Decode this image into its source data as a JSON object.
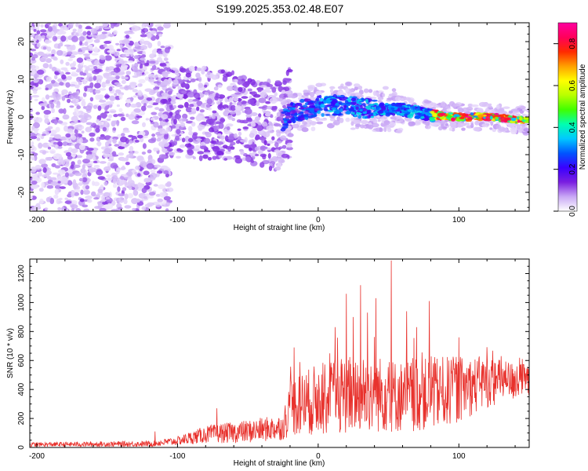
{
  "title": "S199.2025.353.02.48.E07",
  "colors": {
    "snr_line": "#e8322d",
    "frame": "#000000",
    "background": "#ffffff"
  },
  "chart_data": [
    {
      "type": "heatmap",
      "name": "spectrogram",
      "xlabel": "Height of straight line (km)",
      "ylabel": "Frequency (Hz)",
      "xlim": [
        -205,
        150
      ],
      "ylim": [
        -25,
        25
      ],
      "xticks": [
        -200,
        -100,
        0,
        100
      ],
      "xtick_labels": [
        "-200",
        "-100",
        "0",
        "100"
      ],
      "yticks": [
        -20,
        -10,
        0,
        10,
        20
      ],
      "ytick_labels": [
        "-20",
        "-10",
        "0",
        "10",
        "20"
      ],
      "colorbar": {
        "label": "Normalized spectral amplitude",
        "range": [
          0.0,
          0.9
        ],
        "ticks": [
          0.0,
          0.2,
          0.4,
          0.6,
          0.8
        ],
        "tick_labels": [
          "0.0",
          "0.2",
          "0.4",
          "0.6",
          "0.8"
        ],
        "colormap": [
          "#ffffff",
          "#c9a8f5",
          "#7a1fe0",
          "#3a00ff",
          "#0055ff",
          "#00c8ff",
          "#00ffb0",
          "#40ff00",
          "#b8ff00",
          "#ffff00",
          "#ffa000",
          "#ff2a00",
          "#ff005a",
          "#ff00a0"
        ]
      },
      "ridge": [
        {
          "x": -120,
          "f": 1.5
        },
        {
          "x": -80,
          "f": 1.0
        },
        {
          "x": -40,
          "f": -1.0
        },
        {
          "x": -30,
          "f": -3.0
        },
        {
          "x": -20,
          "f": 1.0
        },
        {
          "x": 0,
          "f": 3.0
        },
        {
          "x": 20,
          "f": 3.0
        },
        {
          "x": 40,
          "f": 2.0
        },
        {
          "x": 60,
          "f": 2.0
        },
        {
          "x": 80,
          "f": 0.5
        },
        {
          "x": 100,
          "f": 0.0
        },
        {
          "x": 120,
          "f": 0.0
        },
        {
          "x": 150,
          "f": -1.0
        }
      ]
    },
    {
      "type": "line",
      "name": "snr",
      "xlabel": "Height of straight line (km)",
      "ylabel": "SNR (10 * v/v)",
      "xlim": [
        -205,
        150
      ],
      "ylim": [
        0,
        1300
      ],
      "xticks": [
        -200,
        -100,
        0,
        100
      ],
      "xtick_labels": [
        "-200",
        "-100",
        "0",
        "100"
      ],
      "yticks": [
        0,
        200,
        400,
        600,
        800,
        1000,
        1200
      ],
      "ytick_labels": [
        "0",
        "200",
        "400",
        "600",
        "800",
        "1000",
        "1200"
      ],
      "envelope": [
        {
          "x": -205,
          "mean": 20,
          "spread": 15
        },
        {
          "x": -120,
          "mean": 25,
          "spread": 20
        },
        {
          "x": -100,
          "mean": 45,
          "spread": 30
        },
        {
          "x": -80,
          "mean": 90,
          "spread": 60
        },
        {
          "x": -50,
          "mean": 110,
          "spread": 80
        },
        {
          "x": -25,
          "mean": 140,
          "spread": 90
        },
        {
          "x": -20,
          "mean": 280,
          "spread": 200
        },
        {
          "x": 0,
          "mean": 330,
          "spread": 250
        },
        {
          "x": 30,
          "mean": 380,
          "spread": 280
        },
        {
          "x": 60,
          "mean": 350,
          "spread": 250
        },
        {
          "x": 90,
          "mean": 380,
          "spread": 250
        },
        {
          "x": 120,
          "mean": 450,
          "spread": 180
        },
        {
          "x": 150,
          "mean": 460,
          "spread": 110
        }
      ],
      "peaks": [
        {
          "x": 52,
          "y": 1290
        },
        {
          "x": 30,
          "y": 1120
        },
        {
          "x": 20,
          "y": 1060
        },
        {
          "x": 41,
          "y": 1030
        },
        {
          "x": 79,
          "y": 1010
        },
        {
          "x": 63,
          "y": 940
        },
        {
          "x": 35,
          "y": 930
        },
        {
          "x": 25,
          "y": 900
        },
        {
          "x": 12,
          "y": 830
        },
        {
          "x": 70,
          "y": 830
        },
        {
          "x": 100,
          "y": 760
        },
        {
          "x": -17,
          "y": 690
        },
        {
          "x": 130,
          "y": 630
        },
        {
          "x": 145,
          "y": 610
        },
        {
          "x": -72,
          "y": 270
        },
        {
          "x": -116,
          "y": 110
        }
      ]
    }
  ]
}
